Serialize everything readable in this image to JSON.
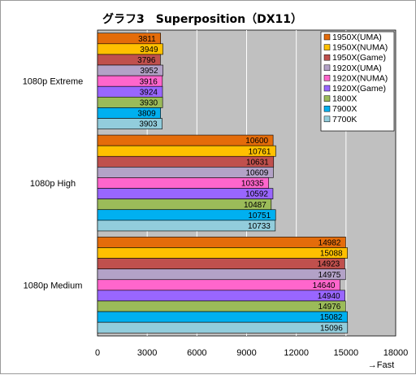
{
  "chart_data": {
    "type": "bar",
    "orientation": "horizontal",
    "title": "グラフ3　Superposition（DX11）",
    "xlabel": "→Fast",
    "ylabel": "",
    "xlim": [
      0,
      18000
    ],
    "xticks": [
      0,
      3000,
      6000,
      9000,
      12000,
      15000,
      18000
    ],
    "grid": true,
    "legend_position": "top-right",
    "categories": [
      "1080p Extreme",
      "1080p High",
      "1080p Medium"
    ],
    "series": [
      {
        "name": "1950X(UMA)",
        "color": "#e46c0a",
        "values": [
          3811,
          10600,
          14982
        ]
      },
      {
        "name": "1950X(NUMA)",
        "color": "#ffc000",
        "values": [
          3949,
          10761,
          15088
        ]
      },
      {
        "name": "1950X(Game)",
        "color": "#c0504d",
        "values": [
          3796,
          10631,
          14923
        ]
      },
      {
        "name": "1920X(UMA)",
        "color": "#b3a2c7",
        "values": [
          3952,
          10609,
          14975
        ]
      },
      {
        "name": "1920X(NUMA)",
        "color": "#ff66cc",
        "values": [
          3916,
          10335,
          14640
        ]
      },
      {
        "name": "1920X(Game)",
        "color": "#9966ff",
        "values": [
          3924,
          10592,
          14940
        ]
      },
      {
        "name": "1800X",
        "color": "#9bbb59",
        "values": [
          3930,
          10487,
          14976
        ]
      },
      {
        "name": "7900X",
        "color": "#00b0f0",
        "values": [
          3809,
          10751,
          15082
        ]
      },
      {
        "name": "7700K",
        "color": "#92cddc",
        "values": [
          3903,
          10733,
          15096
        ]
      }
    ]
  },
  "colors": {
    "plot_background": "#c0c0c0",
    "gridline": "#ffffff"
  }
}
